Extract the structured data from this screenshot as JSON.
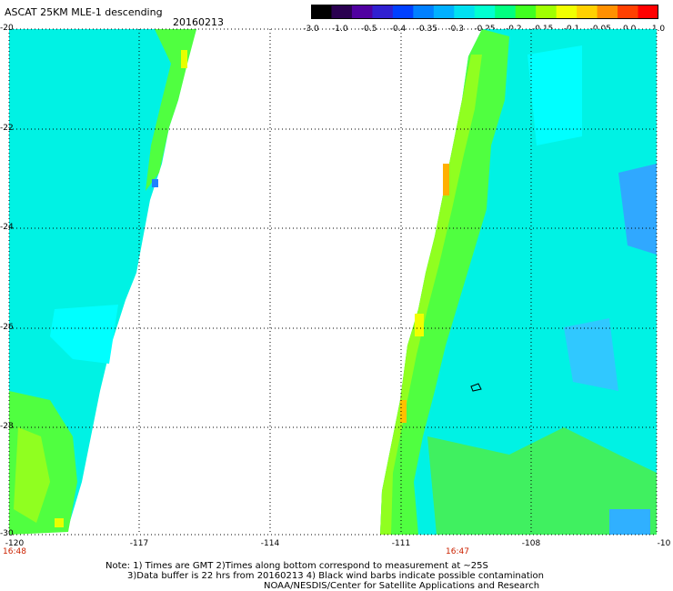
{
  "title": "ASCAT 25KM MLE-1 descending",
  "date": "20160213",
  "colorbar": {
    "ticks": [
      "-3.0",
      "-1.0",
      "-0.5",
      "-0.4",
      "-0.35",
      "-0.3",
      "-0.25",
      "-0.2",
      "-0.15",
      "-0.1",
      "-0.05",
      "0.0",
      "1.0"
    ],
    "colors": [
      "#000000",
      "#2a0050",
      "#5000a0",
      "#3020d0",
      "#0040ff",
      "#0080ff",
      "#00b0ff",
      "#00e0f0",
      "#00ffd0",
      "#00ff80",
      "#40ff20",
      "#a0ff00",
      "#f0ff00",
      "#ffd000",
      "#ff9000",
      "#ff4000",
      "#ff0000"
    ]
  },
  "axes": {
    "lat_labels": [
      "-20",
      "-22",
      "-24",
      "-26",
      "-28",
      "-30"
    ],
    "lon_labels": [
      "-120",
      "-117",
      "-114",
      "-111",
      "-108",
      "-10"
    ]
  },
  "times": [
    "16:48",
    "16:47"
  ],
  "notes": {
    "line1": "Note: 1) Times are GMT 2)Times along bottom correspond to measurement at ~25S",
    "line2": "3)Data buffer is 22 hrs from 20160213 4) Black wind barbs indicate possible contamination",
    "line3": "NOAA/NESDIS/Center for Satellite Applications and Research"
  },
  "colors": {
    "cyan": "#00ffff",
    "aqua": "#00f0e0",
    "green": "#40ff40",
    "lime": "#80ff20",
    "yellow": "#f0ff00",
    "orange": "#ffa000",
    "blue": "#2090ff"
  }
}
